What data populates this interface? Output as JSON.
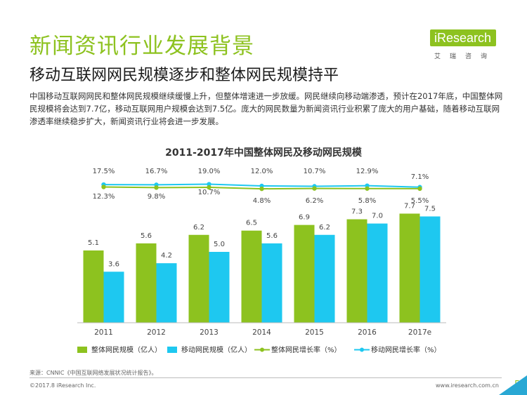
{
  "page": {
    "title": "新闻资讯行业发展背景",
    "subtitle": "移动互联网网民规模逐步和整体网民规模持平",
    "body": "中国移动互联网网民和整体网民规模继续缓慢上升，但整体增速进一步放缓。网民继续向移动端渗透，预计在2017年底，中国整体网民规模将会达到7.7亿，移动互联网用户规模会达到7.5亿。庞大的网民数量为新闻资讯行业积累了庞大的用户基础，随着移动互联网渗透率继续稳步扩大，新闻资讯行业将会进一步发展。",
    "source": "来源：CNNIC《中国互联网络发展状况统计报告》。",
    "copyright": "©2017.8 iResearch Inc.",
    "website": "www.iresearch.com.cn",
    "page_number": "5"
  },
  "logo": {
    "brand": "iResearch",
    "tagline": "艾瑞咨询"
  },
  "colors": {
    "green": "#8dc21f",
    "blue": "#1ec8f0",
    "corner": "#29a8d4"
  },
  "chart_data": {
    "type": "bar",
    "title": "2011-2017年中国整体网民及移动网民规模",
    "categories": [
      "2011",
      "2012",
      "2013",
      "2014",
      "2015",
      "2016",
      "2017e"
    ],
    "series": [
      {
        "name": "整体网民规模（亿人）",
        "kind": "bar",
        "color": "#8dc21f",
        "values": [
          5.1,
          5.6,
          6.2,
          6.5,
          6.9,
          7.3,
          7.7
        ],
        "labels": [
          "5.1",
          "5.6",
          "6.2",
          "6.5",
          "6.9",
          "7.3",
          "7.7"
        ]
      },
      {
        "name": "移动网民规模（亿人）",
        "kind": "bar",
        "color": "#1ec8f0",
        "values": [
          3.6,
          4.2,
          5.0,
          5.6,
          6.2,
          7.0,
          7.5
        ],
        "labels": [
          "3.6",
          "4.2",
          "5.0",
          "5.6",
          "6.2",
          "7.0",
          "7.5"
        ]
      },
      {
        "name": "整体网民增长率（%）",
        "kind": "line",
        "color": "#8dc21f",
        "values": [
          12.3,
          9.8,
          10.7,
          4.8,
          6.2,
          5.8,
          5.5
        ],
        "labels": [
          "12.3%",
          "9.8%",
          "10.7%",
          "4.8%",
          "6.2%",
          "5.8%",
          "5.5%"
        ]
      },
      {
        "name": "移动网民增长率（%）",
        "kind": "line",
        "color": "#1ec8f0",
        "values": [
          17.5,
          16.7,
          19.0,
          12.0,
          10.7,
          12.9,
          7.1
        ],
        "labels": [
          "17.5%",
          "16.7%",
          "19.0%",
          "12.0%",
          "10.7%",
          "12.9%",
          "7.1%"
        ]
      }
    ],
    "legend_position": "bottom",
    "grid": false
  }
}
